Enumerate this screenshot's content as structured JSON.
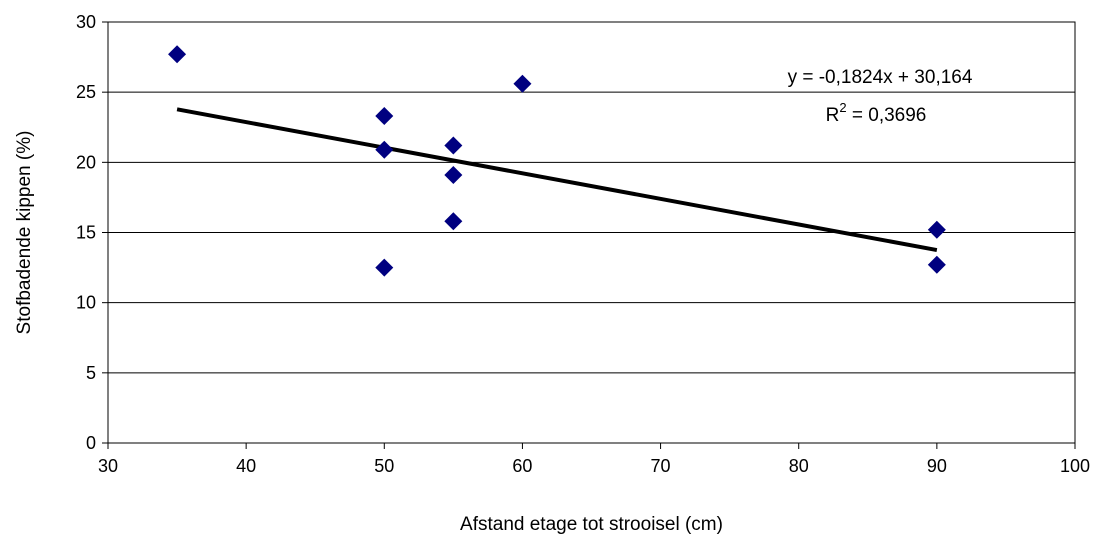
{
  "chart_data": {
    "type": "scatter",
    "title": "",
    "xlabel": "Afstand etage tot strooisel (cm)",
    "ylabel": "Stofbadende kippen (%)",
    "xlim": [
      30,
      100
    ],
    "ylim": [
      0,
      30
    ],
    "x_ticks": [
      30,
      40,
      50,
      60,
      70,
      80,
      90,
      100
    ],
    "y_ticks": [
      0,
      5,
      10,
      15,
      20,
      25,
      30
    ],
    "grid": "horizontal",
    "marker": "diamond",
    "marker_color": "#000080",
    "points": [
      {
        "x": 35,
        "y": 27.7
      },
      {
        "x": 50,
        "y": 23.3
      },
      {
        "x": 50,
        "y": 20.9
      },
      {
        "x": 50,
        "y": 12.5
      },
      {
        "x": 55,
        "y": 21.2
      },
      {
        "x": 55,
        "y": 19.1
      },
      {
        "x": 55,
        "y": 15.8
      },
      {
        "x": 60,
        "y": 25.6
      },
      {
        "x": 90,
        "y": 15.2
      },
      {
        "x": 90,
        "y": 12.7
      }
    ],
    "trendline": {
      "type": "linear",
      "slope": -0.1824,
      "intercept": 30.164,
      "x_range": [
        35,
        90
      ],
      "color": "#000000",
      "equation_label": "y = -0,1824x + 30,164",
      "r2_prefix": "R",
      "r2_superscript": "2",
      "r2_value": " = 0,3696"
    }
  }
}
